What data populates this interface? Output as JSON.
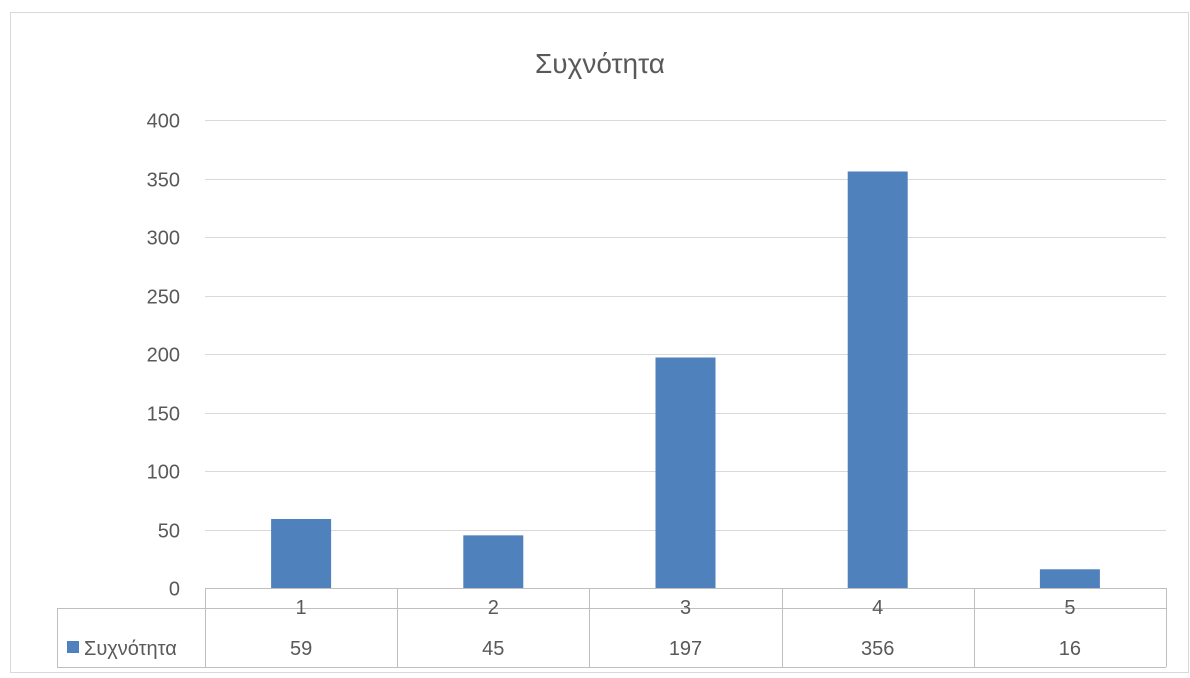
{
  "chart_data": {
    "type": "bar",
    "title": "Συχνότητα",
    "categories": [
      "1",
      "2",
      "3",
      "4",
      "5"
    ],
    "series": [
      {
        "name": "Συχνότητα",
        "values": [
          59,
          45,
          197,
          356,
          16
        ]
      }
    ],
    "ylim": [
      0,
      400
    ],
    "yticks": [
      0,
      50,
      100,
      150,
      200,
      250,
      300,
      350,
      400
    ],
    "xlabel": "",
    "ylabel": "",
    "grid": true,
    "legend": "data-table",
    "data_table": true,
    "color": "#4f81bd"
  }
}
